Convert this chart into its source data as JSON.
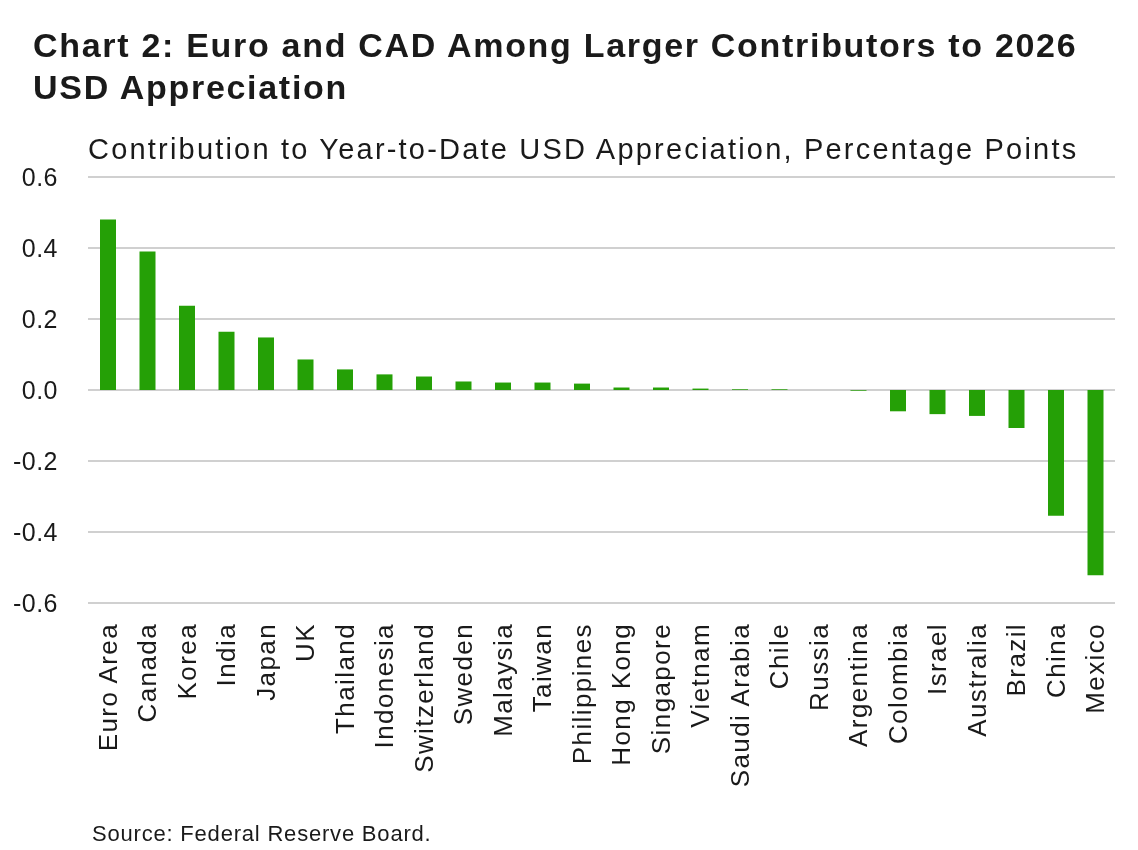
{
  "chart_data": {
    "type": "bar",
    "title": "Chart 2: Euro and CAD Among Larger Contributors to 2026 USD Appreciation",
    "subtitle": "Contribution to Year-to-Date USD Appreciation, Percentage Points",
    "categories": [
      "Euro Area",
      "Canada",
      "Korea",
      "India",
      "Japan",
      "UK",
      "Thailand",
      "Indonesia",
      "Switzerland",
      "Sweden",
      "Malaysia",
      "Taiwan",
      "Philippines",
      "Hong Kong",
      "Singapore",
      "Vietnam",
      "Saudi Arabia",
      "Chile",
      "Russia",
      "Argentina",
      "Colombia",
      "Israel",
      "Australia",
      "Brazil",
      "China",
      "Mexico"
    ],
    "values": [
      0.48,
      0.39,
      0.237,
      0.164,
      0.148,
      0.086,
      0.058,
      0.044,
      0.038,
      0.024,
      0.021,
      0.021,
      0.018,
      0.007,
      0.007,
      0.004,
      0.002,
      0.002,
      0,
      -0.002,
      -0.06,
      -0.068,
      -0.073,
      -0.107,
      -0.354,
      -0.522
    ],
    "color": "#25a006",
    "ylim": [
      -0.6,
      0.6
    ],
    "yticks": [
      -0.6,
      -0.4,
      -0.2,
      {
        "value": 0,
        "label": "0.0"
      },
      0.2,
      0.4,
      0.6
    ],
    "grid": "y",
    "annotations": [
      "Source: Federal Reserve Board."
    ]
  }
}
